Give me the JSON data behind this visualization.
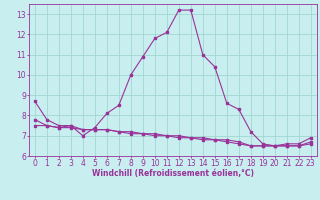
{
  "xlabel": "Windchill (Refroidissement éolien,°C)",
  "xlim": [
    -0.5,
    23.5
  ],
  "ylim": [
    6,
    13.5
  ],
  "yticks": [
    6,
    7,
    8,
    9,
    10,
    11,
    12,
    13
  ],
  "xticks": [
    0,
    1,
    2,
    3,
    4,
    5,
    6,
    7,
    8,
    9,
    10,
    11,
    12,
    13,
    14,
    15,
    16,
    17,
    18,
    19,
    20,
    21,
    22,
    23
  ],
  "bg_color": "#c8eef0",
  "line_color": "#993399",
  "grid_color": "#a0d8d0",
  "line1_x": [
    0,
    1,
    2,
    3,
    4,
    5,
    6,
    7,
    8,
    9,
    10,
    11,
    12,
    13,
    14,
    15,
    16,
    17,
    18,
    19,
    20,
    21,
    22,
    23
  ],
  "line1_y": [
    8.7,
    7.8,
    7.5,
    7.5,
    7.0,
    7.4,
    8.1,
    8.5,
    10.0,
    10.9,
    11.8,
    12.1,
    13.2,
    13.2,
    11.0,
    10.4,
    8.6,
    8.3,
    7.2,
    6.6,
    6.5,
    6.6,
    6.6,
    6.9
  ],
  "line2_x": [
    0,
    1,
    2,
    3,
    4,
    5,
    6,
    7,
    8,
    9,
    10,
    11,
    12,
    13,
    14,
    15,
    16,
    17,
    18,
    19,
    20,
    21,
    22,
    23
  ],
  "line2_y": [
    7.8,
    7.5,
    7.4,
    7.5,
    7.3,
    7.3,
    7.3,
    7.2,
    7.2,
    7.1,
    7.1,
    7.0,
    7.0,
    6.9,
    6.9,
    6.8,
    6.8,
    6.7,
    6.5,
    6.5,
    6.5,
    6.5,
    6.5,
    6.7
  ],
  "line3_x": [
    0,
    1,
    2,
    3,
    4,
    5,
    6,
    7,
    8,
    9,
    10,
    11,
    12,
    13,
    14,
    15,
    16,
    17,
    18,
    19,
    20,
    21,
    22,
    23
  ],
  "line3_y": [
    7.5,
    7.5,
    7.4,
    7.4,
    7.3,
    7.3,
    7.3,
    7.2,
    7.1,
    7.1,
    7.0,
    7.0,
    6.9,
    6.9,
    6.8,
    6.8,
    6.7,
    6.6,
    6.5,
    6.5,
    6.5,
    6.5,
    6.5,
    6.6
  ],
  "tick_fontsize": 5.5,
  "xlabel_fontsize": 5.5
}
